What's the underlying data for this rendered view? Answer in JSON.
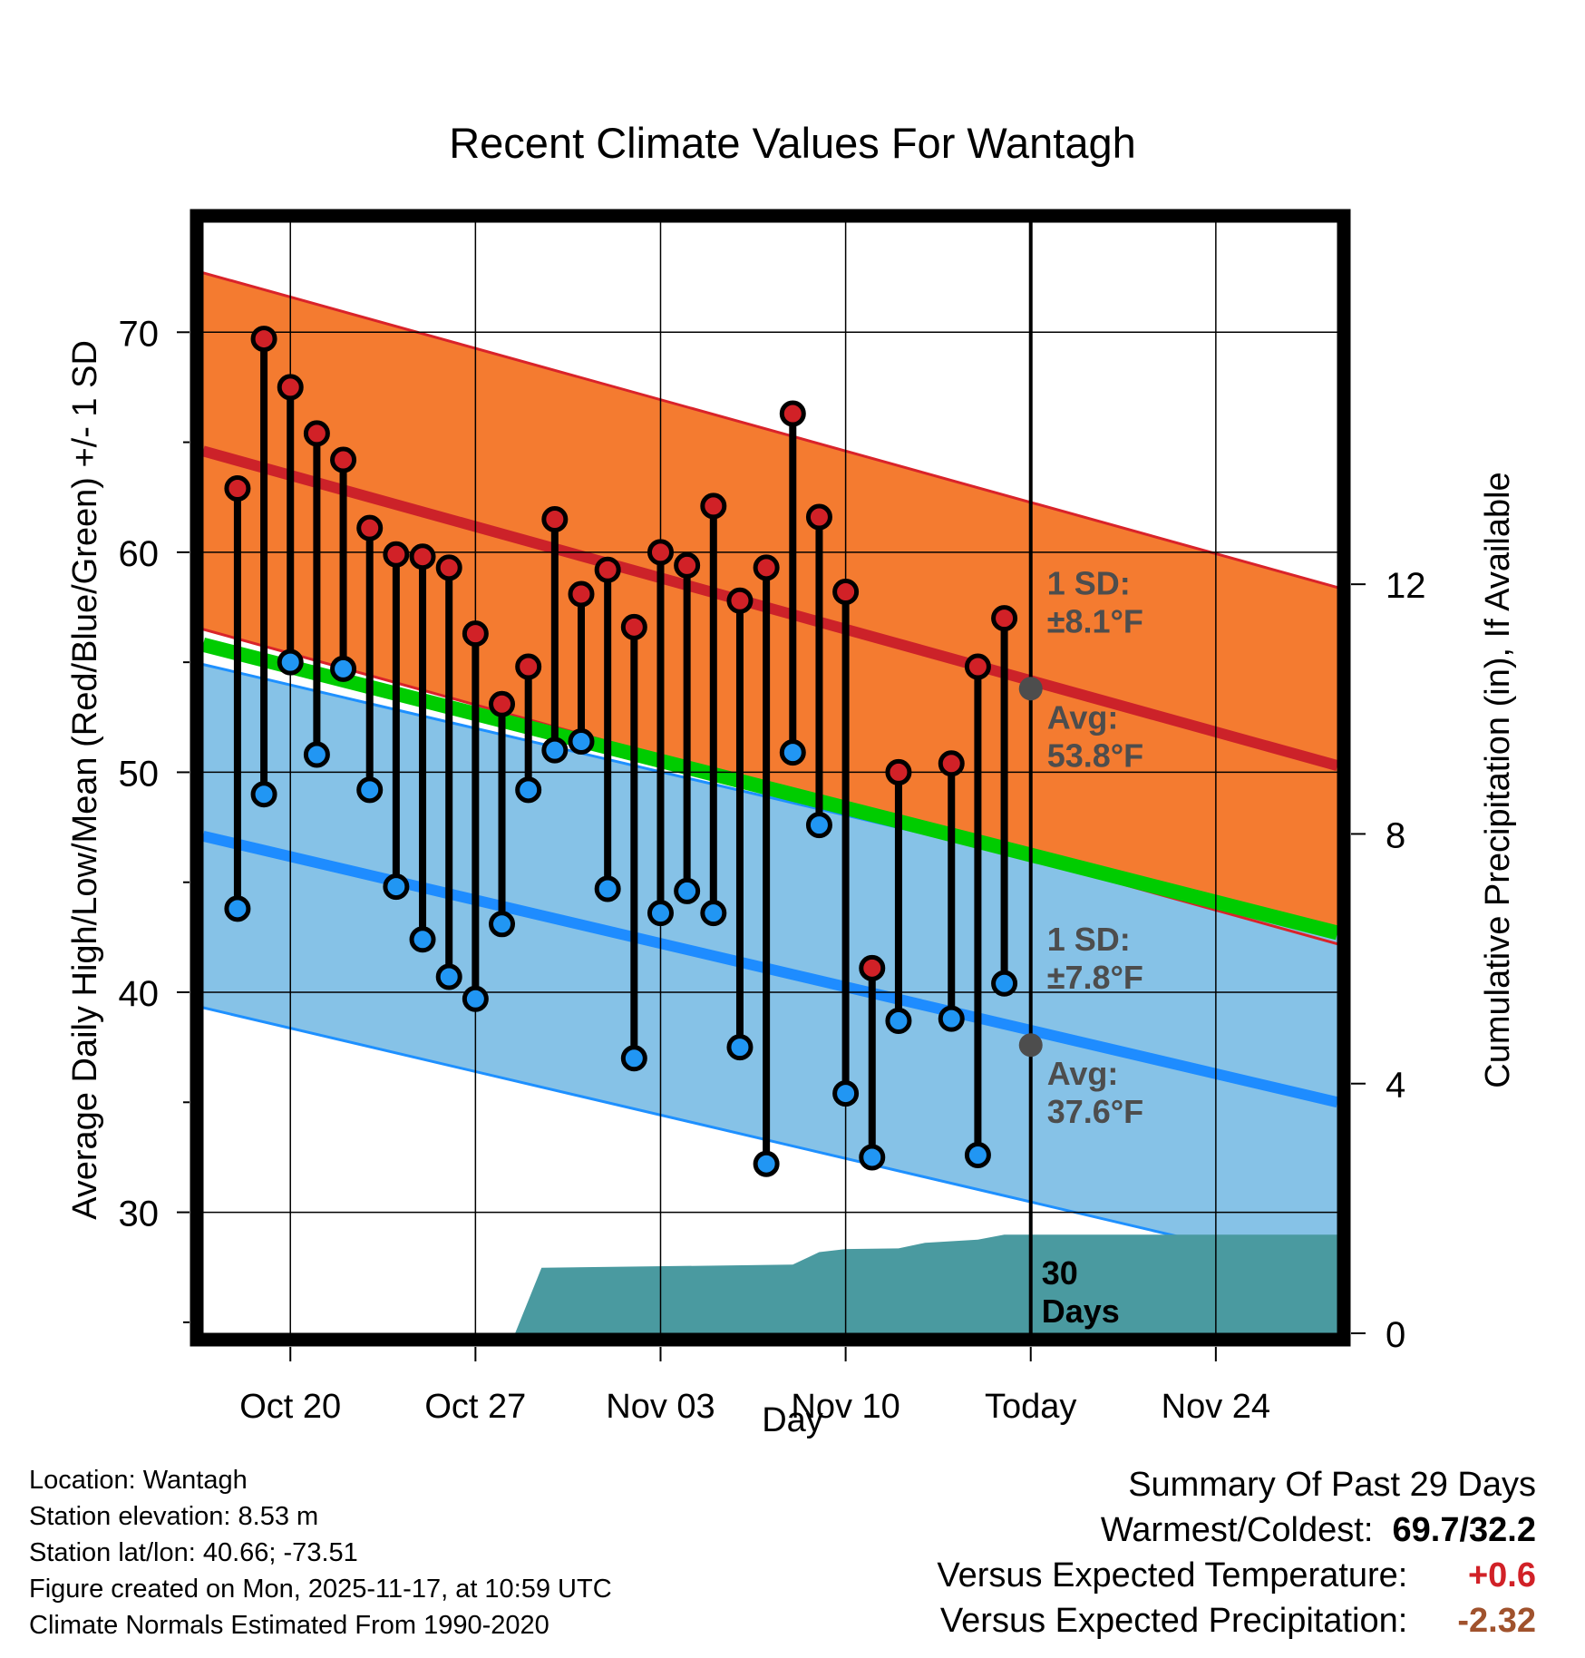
{
  "colors": {
    "high_band": "#f47b30",
    "high_band_edge": "#d9232a",
    "high_avg": "#cc2229",
    "low_band": "#86c2e7",
    "low_band_edge": "#1e90ff",
    "low_avg": "#1e8cff",
    "mean_line": "#00cc00",
    "precip": "#4a9aa0",
    "high_marker": "#d12127",
    "low_marker": "#2196f3",
    "annotation": "#4d4d4d",
    "positive": "#d12127",
    "negative": "#a0522d"
  },
  "chart_data": {
    "type": "range",
    "title": "Recent Climate Values For Wantagh",
    "xlabel": "Day",
    "ylabel": "Average Daily High/Low/Mean (Red/Blue/Green) +/- 1 SD",
    "y2label": "Cumulative Precipitation (in), If Available",
    "ylim": [
      24.5,
      75
    ],
    "y_ticks": [
      30,
      40,
      50,
      60,
      70
    ],
    "y_minor_ticks": [
      25,
      35,
      45,
      55,
      65
    ],
    "y2lim": [
      0,
      17.8
    ],
    "y2_ticks": [
      0,
      4,
      8,
      12
    ],
    "xlim": [
      -3.3,
      39.6
    ],
    "x_ticks": [
      {
        "day": 0,
        "label": "Oct 20"
      },
      {
        "day": 7,
        "label": "Oct 27"
      },
      {
        "day": 14,
        "label": "Nov 03"
      },
      {
        "day": 21,
        "label": "Nov 10"
      },
      {
        "day": 28,
        "label": "Today"
      },
      {
        "day": 35,
        "label": "Nov 24"
      }
    ],
    "today_day": 28,
    "normals": {
      "high_avg": {
        "start": 64.6,
        "end": 50.3
      },
      "high_sd": 8.1,
      "low_avg": {
        "start": 47.1,
        "end": 35.0
      },
      "low_sd": 7.8,
      "mean": {
        "start": 55.8,
        "end": 42.7
      }
    },
    "days": [
      {
        "day": -2,
        "high": 62.9,
        "low": 43.8
      },
      {
        "day": -1,
        "high": 69.7,
        "low": 49.0
      },
      {
        "day": 0,
        "high": 67.5,
        "low": 55.0
      },
      {
        "day": 1,
        "high": 65.4,
        "low": 50.8
      },
      {
        "day": 2,
        "high": 64.2,
        "low": 54.7
      },
      {
        "day": 3,
        "high": 61.1,
        "low": 49.2
      },
      {
        "day": 4,
        "high": 59.9,
        "low": 44.8
      },
      {
        "day": 5,
        "high": 59.8,
        "low": 42.4
      },
      {
        "day": 6,
        "high": 59.3,
        "low": 40.7
      },
      {
        "day": 7,
        "high": 56.3,
        "low": 39.7
      },
      {
        "day": 8,
        "high": 53.1,
        "low": 43.1
      },
      {
        "day": 9,
        "high": 54.8,
        "low": 49.2
      },
      {
        "day": 10,
        "high": 61.5,
        "low": 51.0
      },
      {
        "day": 11,
        "high": 58.1,
        "low": 51.4
      },
      {
        "day": 12,
        "high": 59.2,
        "low": 44.7
      },
      {
        "day": 13,
        "high": 56.6,
        "low": 37.0
      },
      {
        "day": 14,
        "high": 60.0,
        "low": 43.6
      },
      {
        "day": 15,
        "high": 59.4,
        "low": 44.6
      },
      {
        "day": 16,
        "high": 62.1,
        "low": 43.6
      },
      {
        "day": 17,
        "high": 57.8,
        "low": 37.5
      },
      {
        "day": 18,
        "high": 59.3,
        "low": 32.2
      },
      {
        "day": 19,
        "high": 66.3,
        "low": 50.9
      },
      {
        "day": 20,
        "high": 61.6,
        "low": 47.6
      },
      {
        "day": 21,
        "high": 58.2,
        "low": 35.4
      },
      {
        "day": 22,
        "high": 41.1,
        "low": 32.5
      },
      {
        "day": 23,
        "high": 50.0,
        "low": 38.7
      },
      {
        "day": 25,
        "high": 50.4,
        "low": 38.8
      },
      {
        "day": 26,
        "high": 54.8,
        "low": 32.6
      },
      {
        "day": 27,
        "high": 57.0,
        "low": 40.4
      }
    ],
    "precip_cumulative": [
      {
        "day": 8.5,
        "value": 0
      },
      {
        "day": 9.5,
        "value": 1.05
      },
      {
        "day": 19,
        "value": 1.1
      },
      {
        "day": 20,
        "value": 1.3
      },
      {
        "day": 21,
        "value": 1.35
      },
      {
        "day": 23,
        "value": 1.36
      },
      {
        "day": 24,
        "value": 1.45
      },
      {
        "day": 26,
        "value": 1.5
      },
      {
        "day": 27,
        "value": 1.58
      },
      {
        "day": 39.6,
        "value": 1.58
      }
    ],
    "annotations": {
      "high_sd_title": "1 SD:",
      "high_sd_value": "±8.1°F",
      "high_avg_title": "Avg:",
      "high_avg_value": "53.8°F",
      "high_avg_today": 53.8,
      "low_sd_title": "1 SD:",
      "low_sd_value": "±7.8°F",
      "low_avg_title": "Avg:",
      "low_avg_value": "37.6°F",
      "low_avg_today": 37.6,
      "precip_days_number": "30",
      "precip_days_unit": "Days"
    }
  },
  "footer": {
    "location": "Location: Wantagh",
    "elevation": "Station elevation: 8.53 m",
    "latlon": "Station lat/lon: 40.66; -73.51",
    "created": "Figure created on Mon, 2025-11-17, at 10:59 UTC",
    "normals": "Climate Normals Estimated From 1990-2020"
  },
  "summary": {
    "title": "Summary Of Past 29 Days",
    "warmest_coldest_label": "Warmest/Coldest:",
    "warmest_coldest_value": "69.7/32.2",
    "temp_label": "Versus Expected Temperature:",
    "temp_value": "+0.6",
    "precip_label": "Versus Expected Precipitation:",
    "precip_value": "-2.32"
  }
}
